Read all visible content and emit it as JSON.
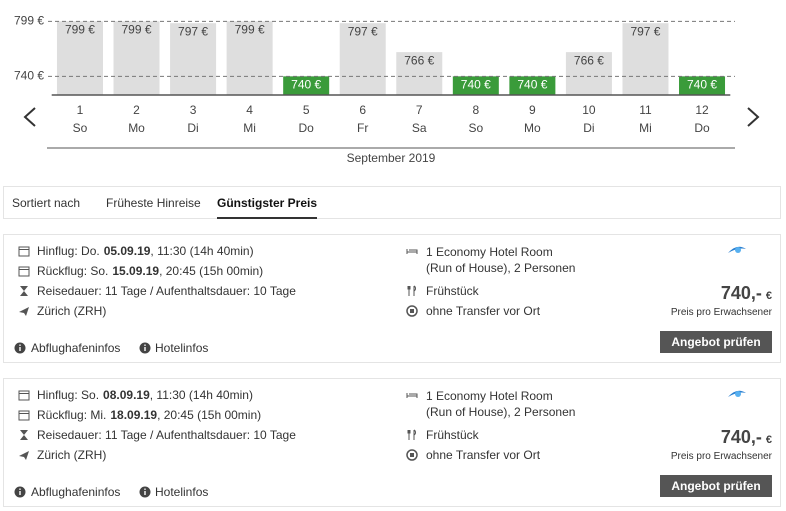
{
  "chart_data": {
    "type": "bar",
    "categories": [
      "1",
      "2",
      "3",
      "4",
      "5",
      "6",
      "7",
      "8",
      "9",
      "10",
      "11",
      "12"
    ],
    "weekdays": [
      "So",
      "Mo",
      "Di",
      "Mi",
      "Do",
      "Fr",
      "Sa",
      "So",
      "Mo",
      "Di",
      "Mi",
      "Do"
    ],
    "values": [
      799,
      799,
      797,
      799,
      740,
      797,
      766,
      740,
      740,
      766,
      797,
      740
    ],
    "value_labels": [
      "799 €",
      "799 €",
      "797 €",
      "799 €",
      "740 €",
      "797 €",
      "766 €",
      "740 €",
      "740 €",
      "766 €",
      "797 €",
      "740 €"
    ],
    "colors": [
      "#dedede",
      "#dedede",
      "#dedede",
      "#dedede",
      "#3a9b3a",
      "#dedede",
      "#dedede",
      "#3a9b3a",
      "#3a9b3a",
      "#dedede",
      "#dedede",
      "#3a9b3a"
    ],
    "ylim": [
      720,
      800
    ],
    "yticks": [
      {
        "value": 740,
        "label": "740 €"
      },
      {
        "value": 799,
        "label": "799 €"
      }
    ],
    "grid": true,
    "xlabel": "September 2019"
  },
  "sort": {
    "label": "Sortiert nach",
    "options": [
      "Früheste Hinreise",
      "Günstigster Preis"
    ],
    "active": 1
  },
  "offers": [
    {
      "outbound": {
        "prefix": "Hinflug: Do.",
        "date": "05.09.19",
        "suffix": ", 11:30 (14h 40min)"
      },
      "return": {
        "prefix": "Rückflug: So.",
        "date": "15.09.19",
        "suffix": ", 20:45 (15h 00min)"
      },
      "duration": "Reisedauer: 11 Tage / Aufenthaltsdauer: 10 Tage",
      "airport": "Zürich (ZRH)",
      "room": "1 Economy Hotel Room (Run of House), 2 Personen",
      "meal": "Frühstück",
      "transfer": "ohne Transfer vor Ort",
      "price": "740,-",
      "currency": "€",
      "price_note": "Preis pro Erwachsener",
      "button": "Angebot prüfen",
      "links": [
        "Abflughafeninfos",
        "Hotelinfos"
      ]
    },
    {
      "outbound": {
        "prefix": "Hinflug: So.",
        "date": "08.09.19",
        "suffix": ", 11:30 (14h 40min)"
      },
      "return": {
        "prefix": "Rückflug: Mi.",
        "date": "18.09.19",
        "suffix": ", 20:45 (15h 00min)"
      },
      "duration": "Reisedauer: 11 Tage / Aufenthaltsdauer: 10 Tage",
      "airport": "Zürich (ZRH)",
      "room": "1 Economy Hotel Room (Run of House), 2 Personen",
      "meal": "Frühstück",
      "transfer": "ohne Transfer vor Ort",
      "price": "740,-",
      "currency": "€",
      "price_note": "Preis pro Erwachsener",
      "button": "Angebot prüfen",
      "links": [
        "Abflughafeninfos",
        "Hotelinfos"
      ]
    }
  ]
}
